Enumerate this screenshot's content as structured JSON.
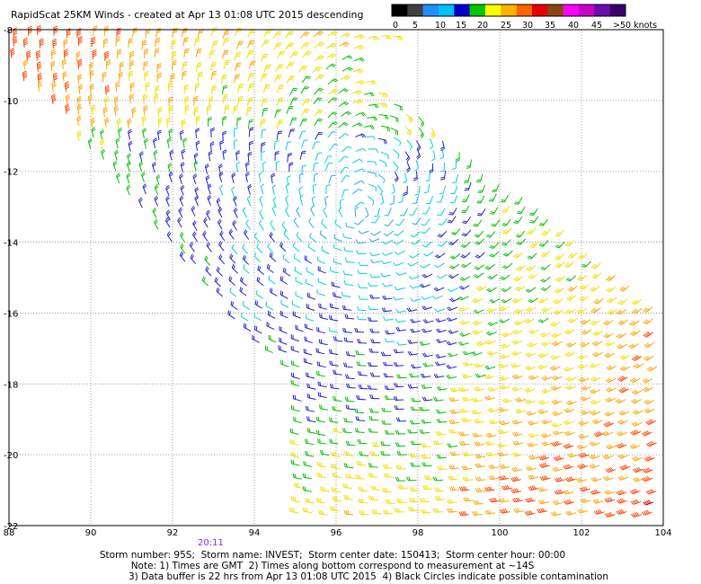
{
  "title": "RapidScat 25KM Winds - created at Apr 13 01:08 UTC 2015 descending",
  "legend": {
    "colors": [
      "#000000",
      "#404040",
      "#1e90ff",
      "#00bfff",
      "#0000cd",
      "#00c800",
      "#ffff00",
      "#ffb400",
      "#ff6400",
      "#e60000",
      "#8b4513",
      "#ff00ff",
      "#c800c8",
      "#6a0dad",
      "#3c0070"
    ],
    "labels": [
      "0",
      "5",
      "10",
      "15",
      "20",
      "25",
      "30",
      "35",
      "40",
      "45",
      ">50 knots"
    ]
  },
  "time_label": "20:11",
  "footer": {
    "line1": "Storm number: 95S;  Storm name: INVEST;  Storm center date: 150413;  Storm center hour: 00:00",
    "line2": "Note: 1) Times are GMT  2) Times along bottom correspond to measurement at ~14S",
    "line3": "3) Data buffer is 22 hrs from Apr 13 01:08 UTC 2015  4) Black Circles indicate possible contamination"
  },
  "chart_data": {
    "type": "scatter",
    "subtype": "wind-barbs",
    "title": "RapidScat 25KM Winds - created at Apr 13 01:08 UTC 2015 descending",
    "x_ticks": [
      "88",
      "90",
      "92",
      "94",
      "96",
      "98",
      "100",
      "102",
      "104"
    ],
    "y_ticks": [
      "-8",
      "-10",
      "-12",
      "-14",
      "-16",
      "-18",
      "-20",
      "-22"
    ],
    "xlim": [
      88,
      104
    ],
    "ylim": [
      -22,
      -8
    ],
    "grid": true,
    "center_lon": 96.5,
    "center_lat": -13.3
  }
}
